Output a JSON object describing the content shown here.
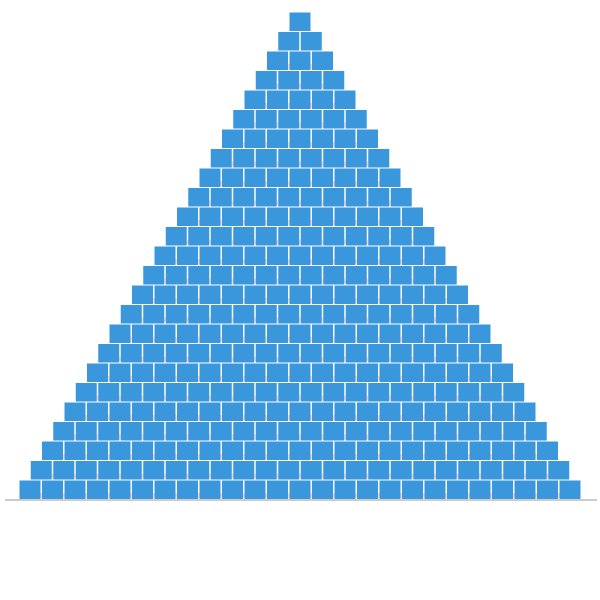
{
  "pyramid": {
    "levels": 25,
    "box_color": "#3a97db",
    "seam_color": "#ff6b6b",
    "ground_color": "#999999",
    "background_color": "#ffffff"
  }
}
